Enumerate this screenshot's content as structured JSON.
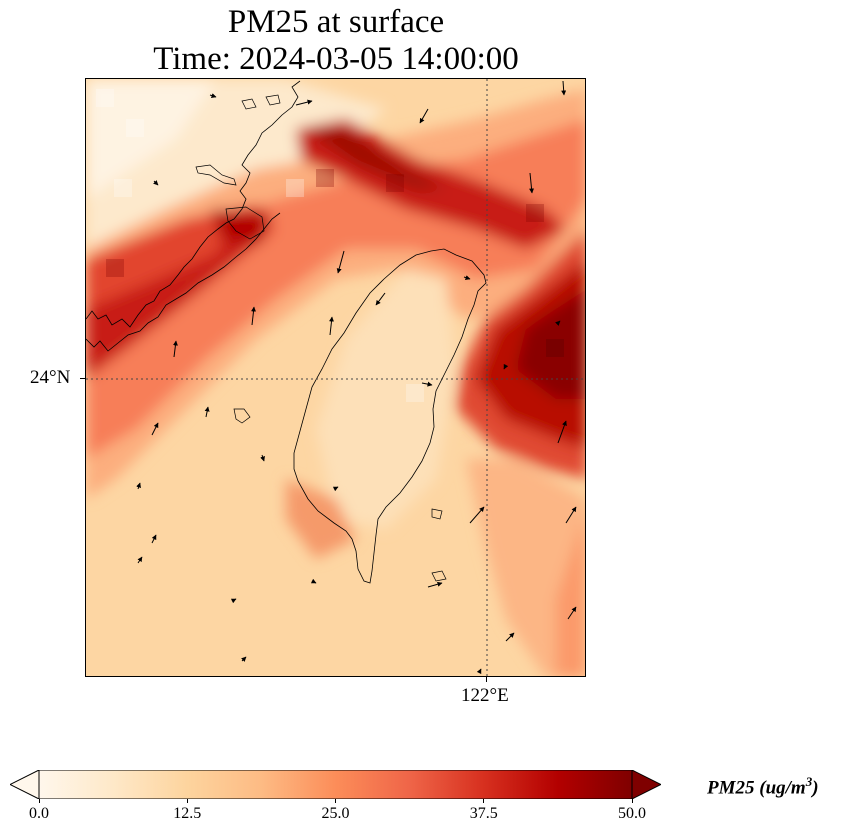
{
  "title": {
    "line1": "PM25 at surface",
    "line2": "Time: 2024-03-05 14:00:00"
  },
  "map": {
    "lat_tick_label": "24°N",
    "lon_tick_label": "122°E"
  },
  "colorbar": {
    "label_main": "PM25 (ug/m",
    "label_sup": "3",
    "label_close": ")",
    "min": 0,
    "max": 50,
    "ticks": [
      "0.0",
      "12.5",
      "25.0",
      "37.5",
      "50.0"
    ],
    "colors": [
      "#fff7ec",
      "#fee8c8",
      "#fdd49e",
      "#fdbb84",
      "#fc8d59",
      "#ef6548",
      "#d7301f",
      "#b30000",
      "#7f0000"
    ]
  }
}
